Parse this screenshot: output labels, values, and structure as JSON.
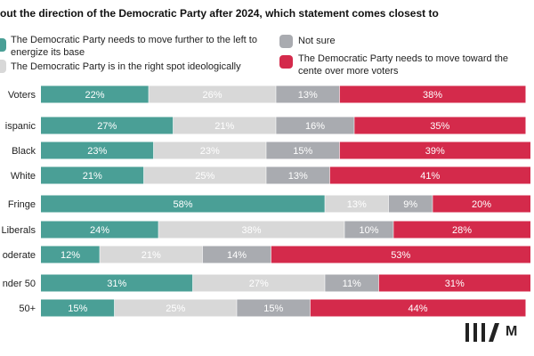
{
  "chart_data": {
    "type": "bar",
    "stacked": true,
    "orientation": "horizontal",
    "title": "out the direction of the Democratic Party after 2024, which statement comes closest to",
    "categories": [
      "Voters",
      "ispanic",
      "Black",
      "White",
      "Fringe",
      "Liberals",
      "oderate",
      "nder 50",
      "50+"
    ],
    "series": [
      {
        "name": "The Democratic Party needs to move further to the left to energize its base",
        "color": "#4a9f96",
        "values": [
          22,
          27,
          23,
          21,
          58,
          24,
          12,
          31,
          15
        ]
      },
      {
        "name": "The Democratic Party is in the right spot ideologically",
        "color": "#d8d8d8",
        "values": [
          26,
          21,
          23,
          25,
          13,
          38,
          21,
          27,
          25
        ]
      },
      {
        "name": "Not sure",
        "color": "#a9abb0",
        "values": [
          13,
          16,
          15,
          13,
          9,
          10,
          14,
          11,
          15
        ]
      },
      {
        "name": "The Democratic Party needs to move toward the cente over more voters",
        "color": "#d42a4b",
        "values": [
          38,
          35,
          39,
          41,
          20,
          28,
          53,
          31,
          44
        ]
      }
    ],
    "value_suffix": "%",
    "xlim": [
      0,
      100
    ],
    "legend_placement": "top"
  },
  "legend_lines": {
    "s0a": "The Democratic Party needs to move further to the left to",
    "s0b": "energize its base",
    "s1": "The Democratic Party is in the right spot ideologically",
    "s2": "Not sure",
    "s3a": "The Democratic Party needs to move toward the cente",
    "s3b": "over more voters"
  },
  "logo_text": "III/ M"
}
